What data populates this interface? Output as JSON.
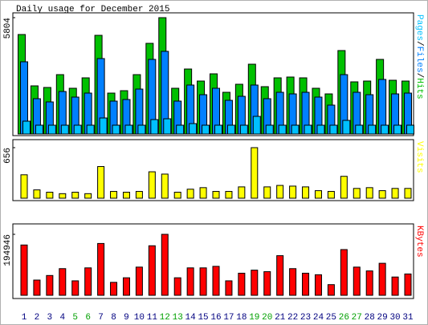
{
  "chart_data": [
    {
      "type": "bar",
      "title": "Daily usage for December 2015",
      "categories": [
        "1",
        "2",
        "3",
        "4",
        "5",
        "6",
        "7",
        "8",
        "9",
        "10",
        "11",
        "12",
        "13",
        "14",
        "15",
        "16",
        "17",
        "18",
        "19",
        "20",
        "21",
        "22",
        "23",
        "24",
        "25",
        "26",
        "27",
        "28",
        "29",
        "30",
        "31"
      ],
      "category_colors": [
        "#000080",
        "#000080",
        "#000080",
        "#000080",
        "#00a000",
        "#00a000",
        "#000080",
        "#000080",
        "#000080",
        "#000080",
        "#000080",
        "#00a000",
        "#00a000",
        "#000080",
        "#000080",
        "#000080",
        "#000080",
        "#000080",
        "#00a000",
        "#00a000",
        "#000080",
        "#000080",
        "#000080",
        "#000080",
        "#000080",
        "#00a000",
        "#00a000",
        "#000080",
        "#000080",
        "#000080",
        "#000080"
      ],
      "legend_separator": "/",
      "series": [
        {
          "name": "Hits",
          "color": "#00c000",
          "values": [
            4963,
            2402,
            2322,
            2962,
            2282,
            2802,
            4923,
            2041,
            2161,
            2962,
            4523,
            5804,
            2282,
            3242,
            2642,
            3002,
            2081,
            2482,
            3482,
            2362,
            2802,
            2842,
            2802,
            2282,
            2001,
            4163,
            2602,
            2642,
            3722,
            2682,
            2642
          ]
        },
        {
          "name": "Files",
          "color": "#0080ff",
          "values": [
            3603,
            1761,
            1601,
            2121,
            1841,
            2041,
            3763,
            1641,
            1721,
            2241,
            3722,
            4123,
            1641,
            2442,
            1961,
            2282,
            1681,
            1881,
            2442,
            1761,
            2081,
            2001,
            2081,
            1841,
            1441,
            2962,
            2081,
            1961,
            2722,
            2001,
            2041
          ]
        },
        {
          "name": "Pages",
          "color": "#00c0ff",
          "values": [
            640,
            440,
            440,
            440,
            440,
            440,
            800,
            440,
            440,
            440,
            720,
            760,
            440,
            520,
            440,
            440,
            440,
            440,
            880,
            440,
            440,
            440,
            440,
            440,
            440,
            680,
            440,
            440,
            440,
            440,
            440
          ]
        }
      ],
      "legend_order": [
        2,
        1,
        0
      ],
      "ylim": [
        0,
        5804
      ],
      "yticks": [
        5804
      ]
    },
    {
      "type": "bar",
      "series": [
        {
          "name": "Visits",
          "color": "#ffff00",
          "values": [
            304,
            108,
            78,
            59,
            78,
            59,
            411,
            88,
            78,
            88,
            343,
            313,
            78,
            117,
            137,
            88,
            88,
            147,
            656,
            147,
            166,
            157,
            147,
            98,
            88,
            284,
            127,
            137,
            98,
            127,
            127
          ]
        }
      ],
      "ylim": [
        0,
        656
      ],
      "yticks": [
        656
      ]
    },
    {
      "type": "bar",
      "series": [
        {
          "name": "KBytes",
          "color": "#ff0000",
          "values": [
            160830,
            48740,
            63360,
            85290,
            46300,
            87730,
            165700,
            41430,
            56050,
            90170,
            158400,
            194946,
            56050,
            87730,
            87730,
            92600,
            46300,
            70670,
            80420,
            75550,
            126720,
            85290,
            70670,
            65800,
            34120,
            146220,
            90170,
            77980,
            102350,
            58490,
            68240
          ]
        }
      ],
      "ylim": [
        0,
        194946
      ],
      "yticks": [
        194946
      ]
    }
  ]
}
